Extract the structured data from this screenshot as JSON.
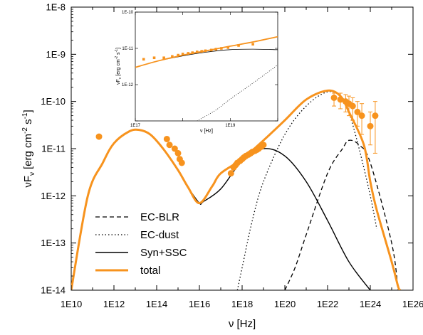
{
  "chart_data": [
    {
      "type": "line",
      "xlabel": "ν [Hz]",
      "ylabel": "νF",
      "ylabel_sub": "ν",
      "ylabel_units": "[erg cm",
      "ylabel_exp1": "-2",
      "ylabel_mid": " s",
      "ylabel_exp2": "-1",
      "ylabel_end": "]",
      "x_scale": "log",
      "y_scale": "log",
      "xlim": [
        10000000000.0,
        1e+26
      ],
      "ylim": [
        1e-14,
        1e-08
      ],
      "x_ticks": [
        "1E10",
        "1E12",
        "1E14",
        "1E16",
        "1E18",
        "1E20",
        "1E22",
        "1E24",
        "1E26"
      ],
      "y_ticks": [
        "1E-14",
        "1E-13",
        "1E-12",
        "1E-11",
        "1E-10",
        "1E-9",
        "1E-8"
      ],
      "legend_position": "bottom-left",
      "legend": [
        {
          "label": "EC-BLR",
          "color": "#000000",
          "dash": "dashed"
        },
        {
          "label": "EC-dust",
          "color": "#000000",
          "dash": "dotted"
        },
        {
          "label": "Syn+SSC",
          "color": "#000000",
          "dash": "solid"
        },
        {
          "label": "total",
          "color": "#f7931e",
          "dash": "solid-thick"
        }
      ],
      "series": [
        {
          "name": "total",
          "color": "#f7931e",
          "x": [
            10000000000.0,
            10000000000.0,
            60000000000.0,
            300000000000.0,
            1000000000000.0,
            5000000000000.0,
            15000000000000.0,
            50000000000000.0,
            200000000000000.0,
            1000000000000000.0,
            3000000000000000.0,
            1e+16,
            4e+16,
            1e+17,
            1e+18,
            1e+19,
            1e+20,
            1e+21,
            1e+22,
            4e+22,
            1e+23,
            5e+23,
            1e+24,
            2e+24,
            1e+25,
            2e+25,
            2.5e+25
          ],
          "y": [
            1e-14,
            1e-14,
            1e-12,
            5e-12,
            1.3e-11,
            2.3e-11,
            2.5e-11,
            2e-11,
            1e-11,
            3.5e-12,
            1.5e-12,
            7e-13,
            1.6e-12,
            3e-12,
            6e-12,
            1.5e-11,
            4e-11,
            1.1e-10,
            1.7e-10,
            1.3e-10,
            6e-11,
            1.2e-11,
            2e-12,
            5e-13,
            4e-14,
            1.2e-14,
            1e-14
          ]
        },
        {
          "name": "Syn+SSC",
          "color": "#000000",
          "x": [
            1000000000000000.0,
            3000000000000000.0,
            1e+16,
            1.5e+16,
            1e+17,
            1e+18,
            1e+19,
            1e+20,
            1e+21,
            1e+22,
            1e+23,
            1e+24
          ],
          "y": [
            3.5e-12,
            1.5e-12,
            7e-13,
            7.5e-13,
            1.4e-12,
            5.5e-12,
            1e-11,
            7e-12,
            2e-12,
            3e-13,
            4e-14,
            1e-14
          ]
        },
        {
          "name": "EC-dust",
          "color": "#000000",
          "x": [
            6e+17,
            1e+18,
            3e+18,
            1e+19,
            1e+20,
            1e+21,
            1e+22,
            5e+22,
            1e+23,
            3e+23,
            1e+24,
            2e+24
          ],
          "y": [
            1e-14,
            3e-14,
            3e-13,
            2e-12,
            2e-11,
            8e-11,
            1.6e-10,
            1.2e-10,
            6e-11,
            1e-11,
            1e-12,
            2e-13
          ]
        },
        {
          "name": "EC-BLR",
          "color": "#000000",
          "x": [
            1e+20,
            3e+20,
            1e+21,
            1e+22,
            5e+22,
            1e+23,
            3e+23,
            1e+24,
            1e+25,
            2e+25
          ],
          "y": [
            1e-14,
            3e-14,
            1.5e-13,
            3e-12,
            1e-11,
            1.5e-11,
            1.2e-11,
            5e-12,
            1e-13,
            1e-14
          ]
        }
      ],
      "points": {
        "name": "data",
        "color": "#f7931e",
        "x": [
          200000000000.0,
          300000000000000.0,
          400000000000000.0,
          700000000000000.0,
          1000000000000000.0,
          1200000000000000.0,
          1500000000000000.0,
          3e+17,
          4e+17,
          5e+17,
          6e+17,
          8e+17,
          1e+18,
          1.2e+18,
          1.5e+18,
          2e+18,
          2.5e+18,
          3e+18,
          4e+18,
          5e+18,
          6e+18,
          8e+18,
          1e+19,
          2e+22,
          4e+22,
          7e+22,
          1e+23,
          1.5e+23,
          2.5e+23,
          4e+23,
          1e+24,
          1.7e+24
        ],
        "y": [
          1.8e-11,
          1.6e-11,
          1.2e-11,
          1e-11,
          8e-12,
          6e-12,
          5e-12,
          3e-12,
          4e-12,
          4.5e-12,
          5e-12,
          5.5e-12,
          6e-12,
          6.5e-12,
          7e-12,
          7.5e-12,
          8e-12,
          8.5e-12,
          9e-12,
          9.5e-12,
          1e-11,
          1.1e-11,
          1.2e-11,
          1.2e-10,
          1.1e-10,
          1e-10,
          9e-11,
          8e-11,
          6e-11,
          5e-11,
          3e-11,
          5e-11
        ],
        "err_lo": [
          null,
          null,
          null,
          null,
          null,
          null,
          null,
          null,
          null,
          null,
          null,
          null,
          null,
          null,
          null,
          null,
          null,
          null,
          null,
          null,
          null,
          null,
          null,
          8e-11,
          7e-11,
          6e-11,
          5e-11,
          4e-11,
          3e-11,
          2e-11,
          1.2e-11,
          8e-12
        ],
        "err_hi": [
          null,
          null,
          null,
          null,
          null,
          null,
          null,
          null,
          null,
          null,
          null,
          null,
          null,
          null,
          null,
          null,
          null,
          null,
          null,
          null,
          null,
          null,
          null,
          1.5e-10,
          1.5e-10,
          1.4e-10,
          1.3e-10,
          1.2e-10,
          1e-10,
          9e-11,
          6e-11,
          1e-10
        ]
      }
    },
    {
      "type": "line",
      "inset": true,
      "xlabel": "ν [Hz]",
      "ylabel": "νF",
      "ylabel_sub": "ν",
      "ylabel_units": "[erg cm",
      "ylabel_exp1": "-2",
      "ylabel_mid": " s",
      "ylabel_exp2": "-1",
      "ylabel_end": "]",
      "x_scale": "log",
      "y_scale": "log",
      "xlim": [
        1e+17,
        1e+20
      ],
      "ylim": [
        1e-13,
        1e-10
      ],
      "x_ticks": [
        "1E17",
        "1E19"
      ],
      "y_ticks": [
        "1E-12",
        "1E-11",
        "1E-10"
      ],
      "series": [
        {
          "name": "total",
          "color": "#f7931e",
          "x": [
            1e+17,
            3e+17,
            1e+18,
            3e+18,
            1e+19,
            3e+19,
            1e+20
          ],
          "y": [
            3e-12,
            4.5e-12,
            6.5e-12,
            8.5e-12,
            1.15e-11,
            1.5e-11,
            2.1e-11
          ]
        },
        {
          "name": "Syn+SSC",
          "color": "#000000",
          "x": [
            1e+17,
            3e+17,
            1e+18,
            3e+18,
            1e+19,
            3e+19,
            1e+20
          ],
          "y": [
            3e-12,
            4.5e-12,
            6.2e-12,
            7.8e-12,
            9.2e-12,
            9.5e-12,
            9.2e-12
          ]
        },
        {
          "name": "EC-dust",
          "color": "#000000",
          "x": [
            2e+18,
            5e+18,
            1e+19,
            3e+19,
            1e+20
          ],
          "y": [
            1e-13,
            2e-13,
            4e-13,
            1.1e-12,
            3.5e-12
          ]
        }
      ],
      "points": {
        "name": "data",
        "color": "#f7931e",
        "x": [
          1.5e+17,
          2.5e+17,
          4e+17,
          6e+17,
          8e+17,
          1e+18,
          1.3e+18,
          1.6e+18,
          2e+18,
          2.5e+18,
          3e+18,
          4e+18,
          5e+18,
          6.5e+18,
          9e+18,
          1.5e+19,
          3e+19
        ],
        "y": [
          5e-12,
          5.5e-12,
          5.5e-12,
          6e-12,
          6.5e-12,
          7e-12,
          7.3e-12,
          7.6e-12,
          8e-12,
          8.3e-12,
          8.6e-12,
          9e-12,
          9.5e-12,
          1e-11,
          1.05e-11,
          1.2e-11,
          1.3e-11
        ]
      }
    }
  ]
}
